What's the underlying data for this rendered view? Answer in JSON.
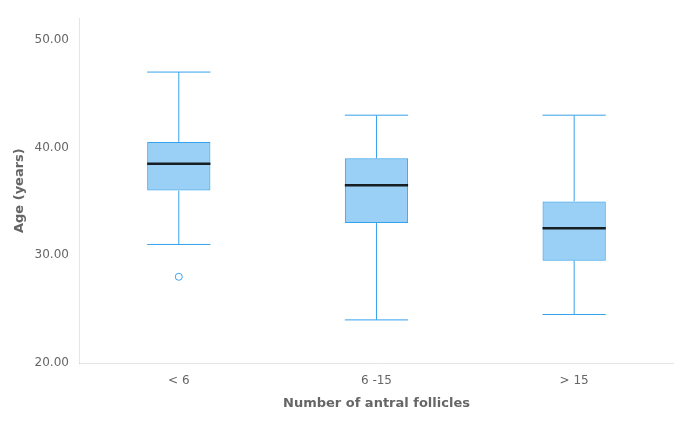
{
  "chart_data": {
    "type": "box",
    "categories": [
      "< 6",
      "6 -15",
      "> 15"
    ],
    "boxes": [
      {
        "q1": 36.0,
        "median": 38.5,
        "q3": 40.5,
        "whisker_low": 31.0,
        "whisker_high": 47.0,
        "outliers": [
          28.0
        ]
      },
      {
        "q1": 33.0,
        "median": 36.5,
        "q3": 39.0,
        "whisker_low": 24.0,
        "whisker_high": 43.0,
        "outliers": []
      },
      {
        "q1": 29.5,
        "median": 32.5,
        "q3": 35.0,
        "whisker_low": 24.5,
        "whisker_high": 43.0,
        "outliers": []
      }
    ],
    "ylim": [
      20.0,
      52.0
    ],
    "yticks": [
      {
        "value": 20,
        "label": "20.00"
      },
      {
        "value": 30,
        "label": "30.00"
      },
      {
        "value": 40,
        "label": "40.00"
      },
      {
        "value": 50,
        "label": "50.00"
      }
    ],
    "xlabel": "Number of antral follicles",
    "ylabel": "Age (years)",
    "grid": false
  }
}
